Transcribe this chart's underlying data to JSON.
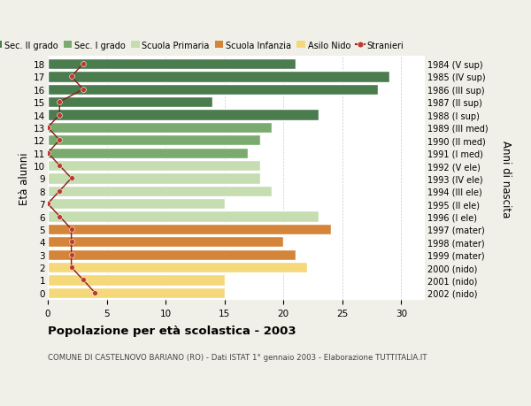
{
  "ages": [
    18,
    17,
    16,
    15,
    14,
    13,
    12,
    11,
    10,
    9,
    8,
    7,
    6,
    5,
    4,
    3,
    2,
    1,
    0
  ],
  "anni_nascita": [
    "1984 (V sup)",
    "1985 (IV sup)",
    "1986 (III sup)",
    "1987 (II sup)",
    "1988 (I sup)",
    "1989 (III med)",
    "1990 (II med)",
    "1991 (I med)",
    "1992 (V ele)",
    "1993 (IV ele)",
    "1994 (III ele)",
    "1995 (II ele)",
    "1996 (I ele)",
    "1997 (mater)",
    "1998 (mater)",
    "1999 (mater)",
    "2000 (nido)",
    "2001 (nido)",
    "2002 (nido)"
  ],
  "bar_values": [
    21,
    29,
    28,
    14,
    23,
    19,
    18,
    17,
    18,
    18,
    19,
    15,
    23,
    24,
    20,
    21,
    22,
    15,
    15
  ],
  "bar_colors": [
    "#4a7c4e",
    "#4a7c4e",
    "#4a7c4e",
    "#4a7c4e",
    "#4a7c4e",
    "#7aaa6e",
    "#7aaa6e",
    "#7aaa6e",
    "#c5ddb0",
    "#c5ddb0",
    "#c5ddb0",
    "#c5ddb0",
    "#c5ddb0",
    "#d4853a",
    "#d4853a",
    "#d4853a",
    "#f5d87a",
    "#f5d87a",
    "#f5d87a"
  ],
  "stranieri_values": [
    3,
    2,
    3,
    1,
    1,
    0,
    1,
    0,
    1,
    2,
    1,
    0,
    1,
    2,
    2,
    2,
    2,
    3,
    4
  ],
  "legend_labels": [
    "Sec. II grado",
    "Sec. I grado",
    "Scuola Primaria",
    "Scuola Infanzia",
    "Asilo Nido",
    "Stranieri"
  ],
  "legend_colors": [
    "#4a7c4e",
    "#7aaa6e",
    "#c5ddb0",
    "#d4853a",
    "#f5d87a",
    "#c0392b"
  ],
  "title": "Popolazione per età scolastica - 2003",
  "subtitle": "COMUNE DI CASTELNOVO BARIANO (RO) - Dati ISTAT 1° gennaio 2003 - Elaborazione TUTTITALIA.IT",
  "ylabel_left": "Età alunni",
  "ylabel_right": "Anni di nascita",
  "xlim": [
    0,
    32
  ],
  "xticks": [
    0,
    5,
    10,
    15,
    20,
    25,
    30
  ],
  "background_color": "#f0f0e8",
  "plot_bg_color": "#ffffff",
  "grid_color": "#cccccc",
  "stranieri_line_color": "#8b1a1a",
  "stranieri_dot_color": "#c0392b"
}
